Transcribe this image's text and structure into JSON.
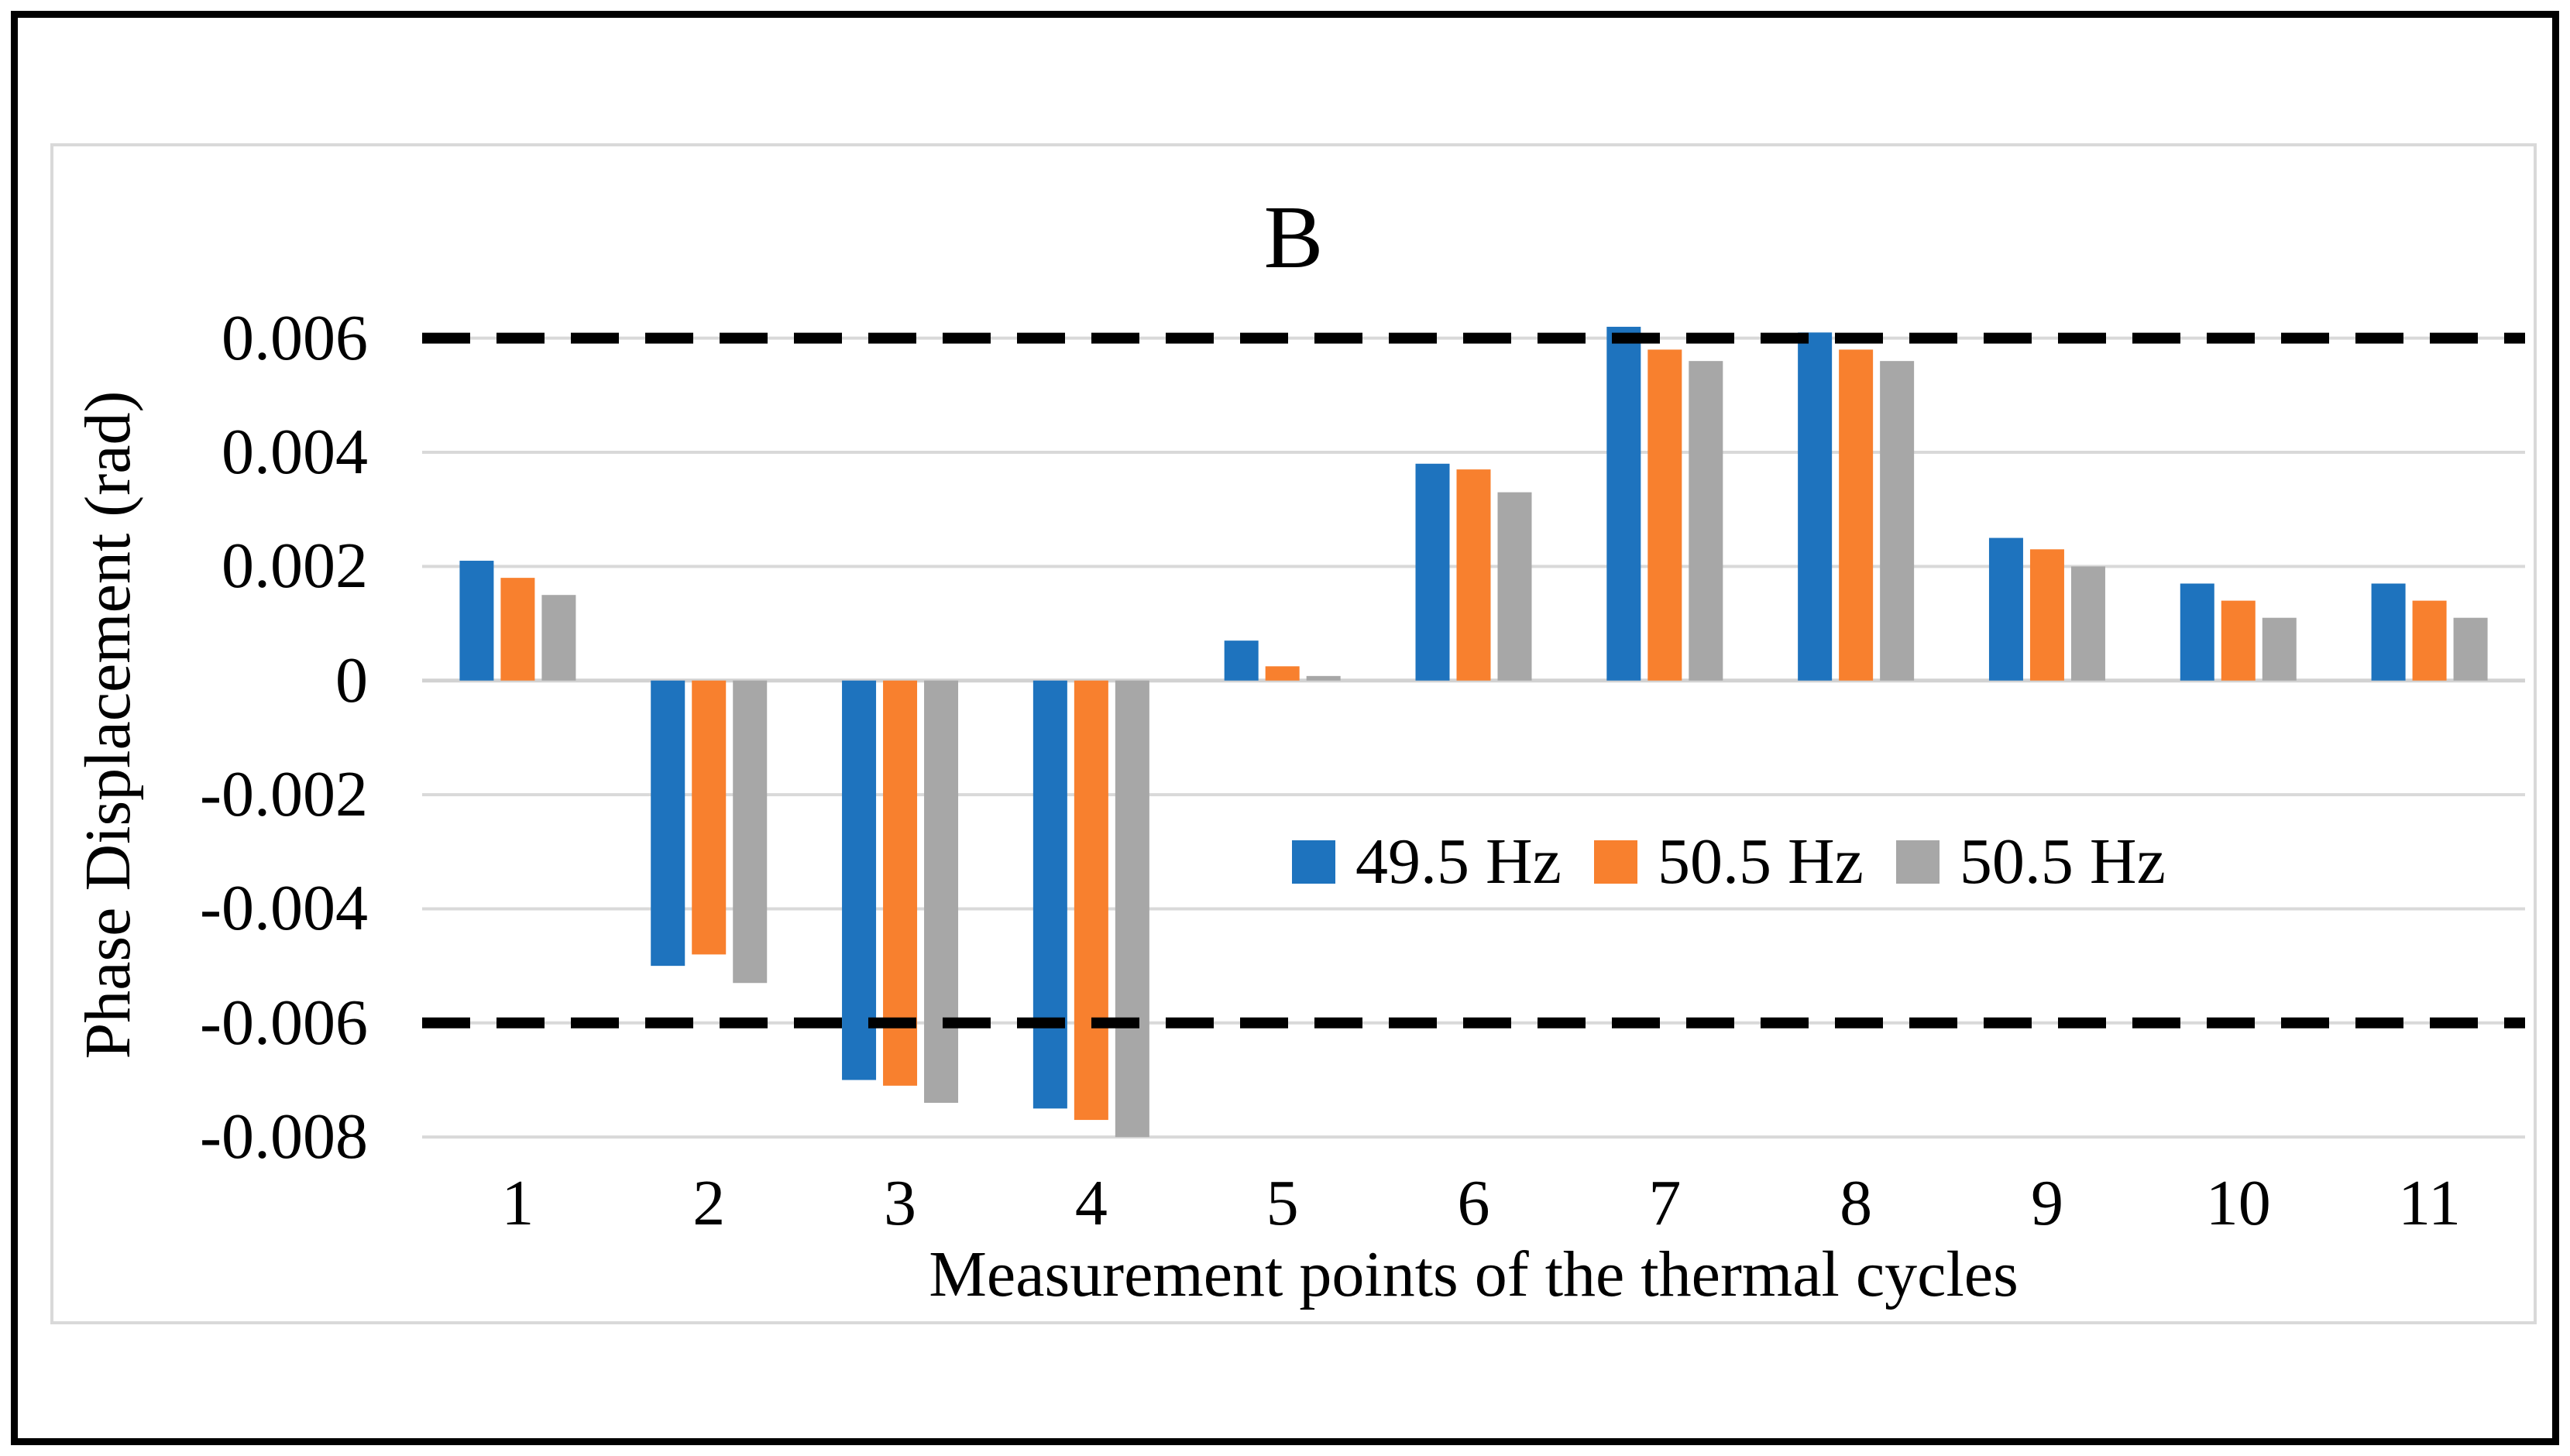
{
  "figure": {
    "panel_label": "B"
  },
  "chart_data": {
    "type": "bar",
    "title": "B",
    "xlabel": "Measurement points of the thermal cycles",
    "ylabel": "Phase Displacement (rad)",
    "categories": [
      "1",
      "2",
      "3",
      "4",
      "5",
      "6",
      "7",
      "8",
      "9",
      "10",
      "11"
    ],
    "series": [
      {
        "name": "49.5 Hz",
        "color": "#1E73BE",
        "values": [
          0.0021,
          -0.005,
          -0.007,
          -0.0075,
          0.0007,
          0.0038,
          0.0062,
          0.0061,
          0.0025,
          0.0017,
          0.0017
        ]
      },
      {
        "name": "50.5 Hz",
        "color": "#F8802E",
        "values": [
          0.0018,
          -0.0048,
          -0.0071,
          -0.0077,
          0.00025,
          0.0037,
          0.0058,
          0.0058,
          0.0023,
          0.0014,
          0.0014
        ]
      },
      {
        "name": "50.5 Hz",
        "color": "#A7A7A7",
        "values": [
          0.0015,
          -0.0053,
          -0.0074,
          -0.008,
          8e-05,
          0.0033,
          0.0056,
          0.0056,
          0.002,
          0.0011,
          0.0011
        ]
      }
    ],
    "y_ticks": [
      "0.006",
      "0.004",
      "0.002",
      "0",
      "-0.002",
      "-0.004",
      "-0.006",
      "-0.008"
    ],
    "ylim": [
      -0.0085,
      0.007
    ],
    "grid": true,
    "gridline_color": "#D9D9D9",
    "zero_line_color": "#D2D2D2",
    "reference_lines": [
      {
        "value": 0.006,
        "style": "dashed",
        "color": "#000000"
      },
      {
        "value": -0.006,
        "style": "dashed",
        "color": "#000000"
      }
    ],
    "legend_position": "inside-middle-right",
    "axis_text_color": "#000000"
  }
}
